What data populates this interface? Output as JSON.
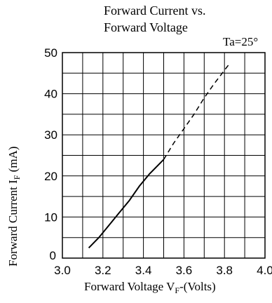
{
  "chart_data": {
    "type": "line",
    "title_line1": "Forward Current vs.",
    "title_line2": "Forward Voltage",
    "annotation": "Ta=25°",
    "xlabel": "Forward Voltage V",
    "xlabel_sub": "F",
    "xlabel_suffix": "-(Volts)",
    "ylabel": "Forward Current  I",
    "ylabel_sub": "F",
    "ylabel_suffix": " (mA)",
    "xlim": [
      3.0,
      4.0
    ],
    "ylim": [
      0,
      50
    ],
    "x_ticks": [
      3.0,
      3.2,
      3.4,
      3.6,
      3.8,
      4.0
    ],
    "x_tick_labels": [
      "3.0",
      "3.2",
      "3.4",
      "3.6",
      "3.8",
      "4.0"
    ],
    "y_ticks": [
      0,
      10,
      20,
      30,
      40,
      50
    ],
    "y_tick_labels": [
      "0",
      "10",
      "20",
      "30",
      "40",
      "50"
    ],
    "grid": true,
    "series": [
      {
        "style": "solid",
        "x": [
          3.13,
          3.18,
          3.23,
          3.28,
          3.33,
          3.38,
          3.43,
          3.5
        ],
        "y": [
          2.5,
          5,
          8,
          11,
          14,
          17.5,
          20.5,
          24
        ]
      },
      {
        "style": "dashed",
        "x": [
          3.5,
          3.55,
          3.6,
          3.65,
          3.7,
          3.75,
          3.82
        ],
        "y": [
          24,
          28,
          31.5,
          35,
          39,
          42.5,
          47
        ]
      }
    ]
  }
}
